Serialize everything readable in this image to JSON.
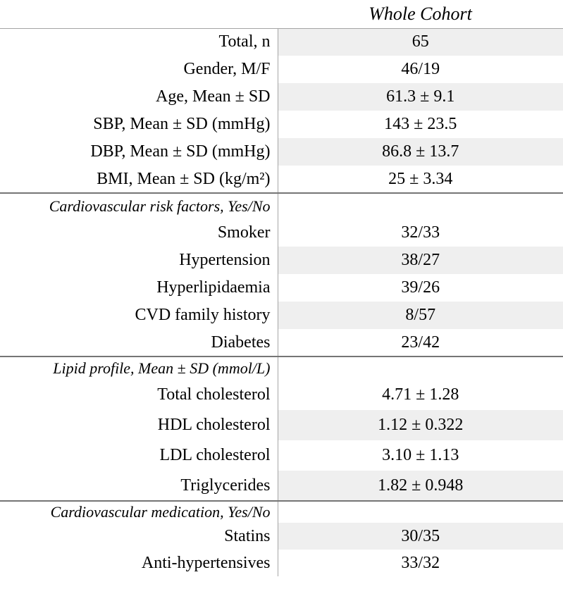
{
  "title": "Whole Cohort",
  "sections": [
    {
      "rows": [
        {
          "label": "Total, n",
          "value": "65"
        },
        {
          "label": "Gender, M/F",
          "value": "46/19"
        },
        {
          "label": "Age, Mean ± SD",
          "value": "61.3 ± 9.1"
        },
        {
          "label": "SBP, Mean ± SD (mmHg)",
          "value": "143 ± 23.5"
        },
        {
          "label": "DBP, Mean ± SD (mmHg)",
          "value": "86.8 ± 13.7"
        },
        {
          "label": "BMI, Mean ± SD (kg/m²)",
          "value": "25 ± 3.34"
        }
      ]
    },
    {
      "header": "Cardiovascular risk factors, Yes/No",
      "rows": [
        {
          "label": "Smoker",
          "value": "32/33"
        },
        {
          "label": "Hypertension",
          "value": "38/27"
        },
        {
          "label": "Hyperlipidaemia",
          "value": "39/26"
        },
        {
          "label": "CVD family history",
          "value": "8/57"
        },
        {
          "label": "Diabetes",
          "value": "23/42"
        }
      ]
    },
    {
      "header": "Lipid profile, Mean ± SD (mmol/L)",
      "rows": [
        {
          "label": "Total cholesterol",
          "value": "4.71 ± 1.28"
        },
        {
          "label": "HDL cholesterol",
          "value": "1.12 ± 0.322"
        },
        {
          "label": "LDL cholesterol",
          "value": "3.10 ± 1.13"
        },
        {
          "label": "Triglycerides",
          "value": "1.82 ± 0.948"
        }
      ]
    },
    {
      "header": "Cardiovascular medication, Yes/No",
      "rows": [
        {
          "label": "Statins",
          "value": "30/35"
        },
        {
          "label": "Anti-hypertensives",
          "value": "33/32"
        }
      ]
    }
  ]
}
